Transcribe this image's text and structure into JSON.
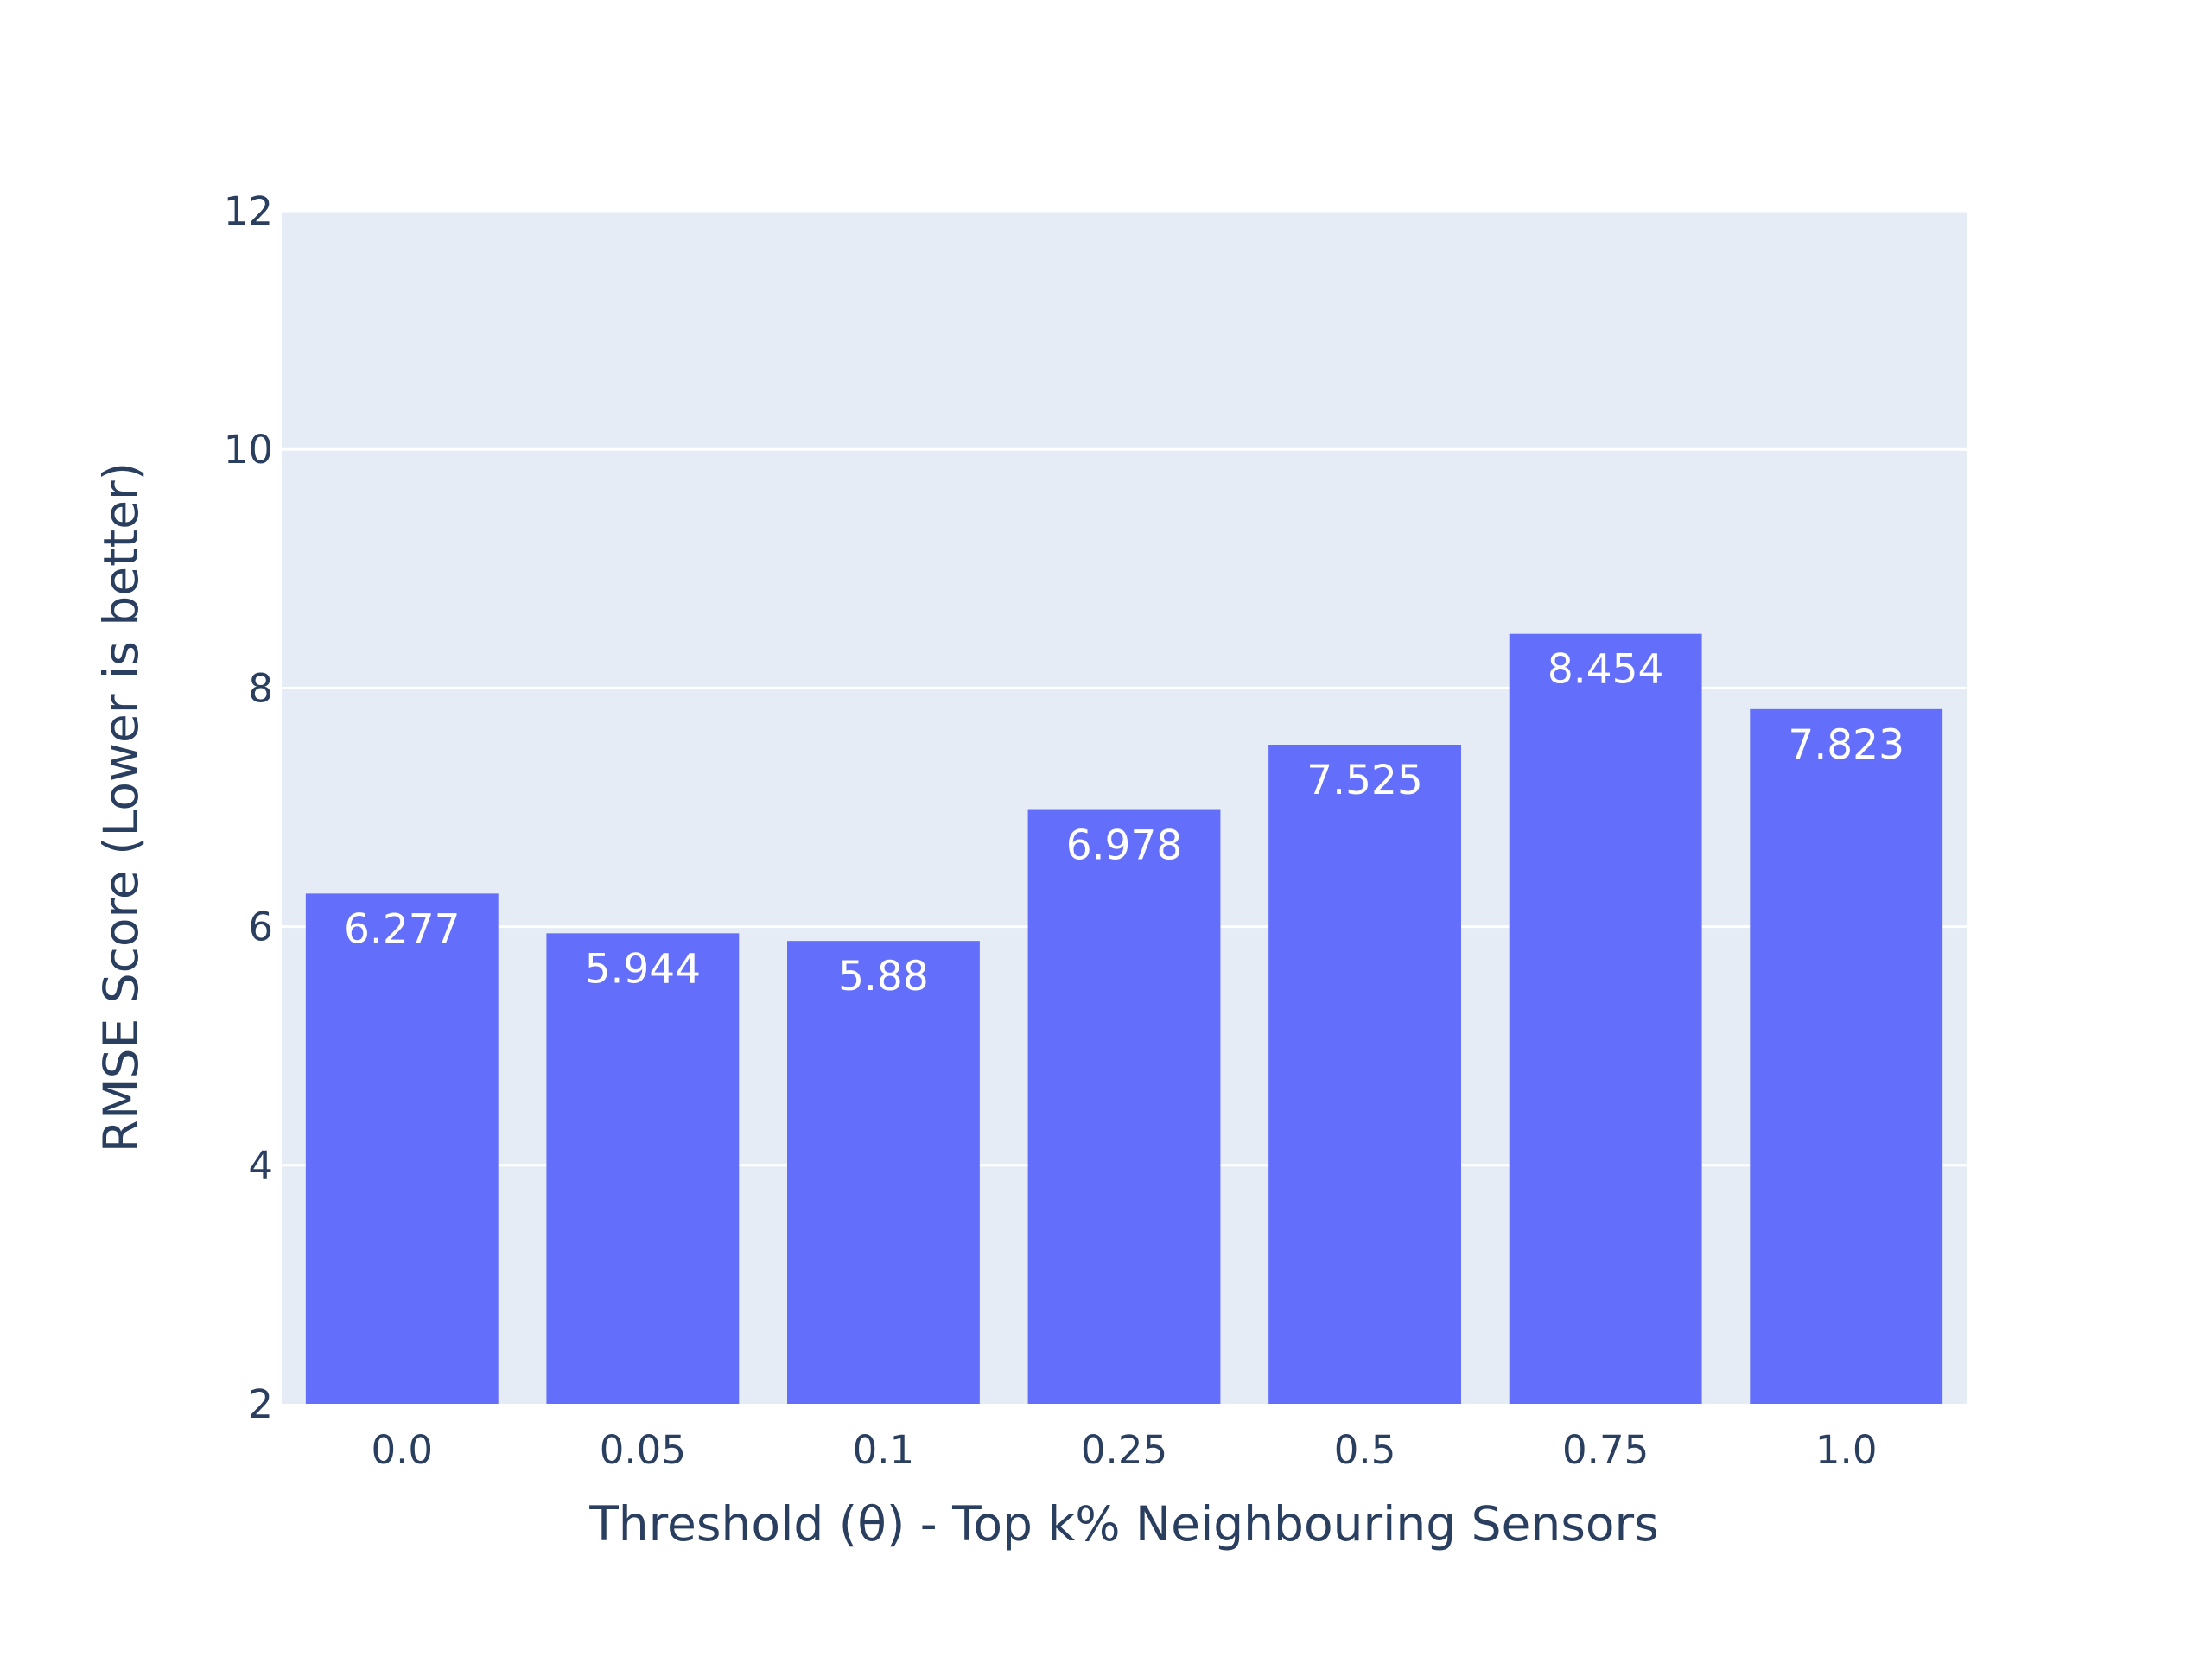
{
  "chart_data": {
    "type": "bar",
    "categories": [
      "0.0",
      "0.05",
      "0.1",
      "0.25",
      "0.5",
      "0.75",
      "1.0"
    ],
    "values": [
      6.277,
      5.944,
      5.88,
      6.978,
      7.525,
      8.454,
      7.823
    ],
    "value_labels": [
      "6.277",
      "5.944",
      "5.88",
      "6.978",
      "7.525",
      "8.454",
      "7.823"
    ],
    "xlabel": "Threshold (θ) - Top k% Neighbouring Sensors",
    "ylabel": "RMSE Score (Lower is better)",
    "ylim": [
      2,
      12
    ],
    "yticks": [
      2,
      4,
      6,
      8,
      10,
      12
    ],
    "ytick_labels": [
      "2",
      "4",
      "6",
      "8",
      "10",
      "12"
    ],
    "grid": true,
    "colors": {
      "bar": "#636efa",
      "plot_background": "#e5ecf6",
      "gridline": "#ffffff",
      "text": "#2a3f5f",
      "bar_label": "#ffffff"
    }
  }
}
